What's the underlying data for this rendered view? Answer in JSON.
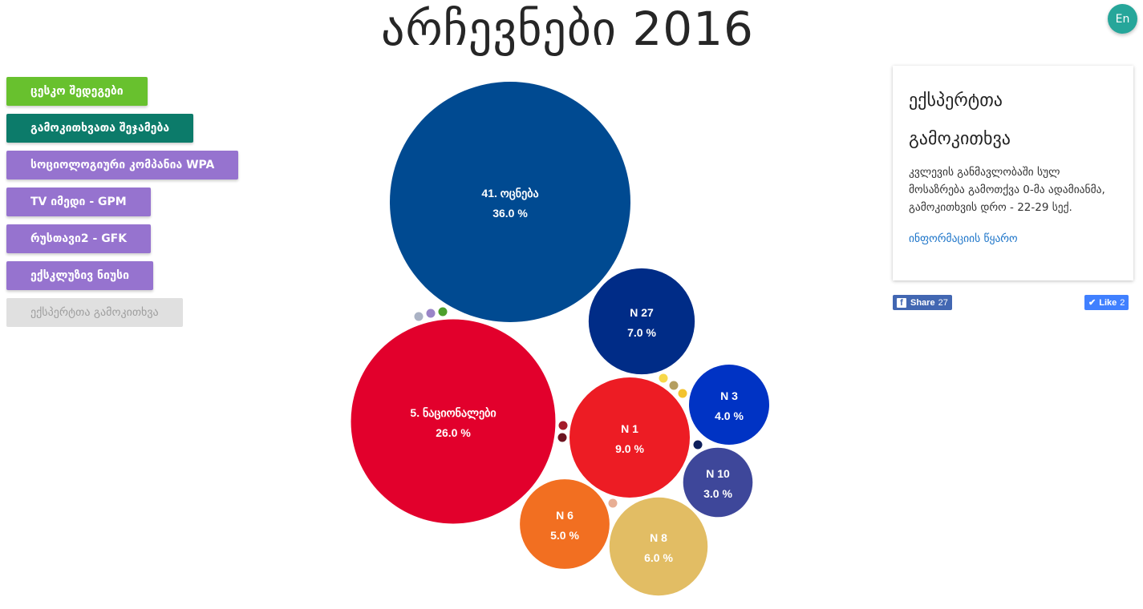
{
  "header": {
    "title": "არჩევნები 2016",
    "lang_button": "En"
  },
  "sidebar": {
    "items": [
      {
        "label": "ცესკო შედეგები",
        "color": "#68c12e"
      },
      {
        "label": "გამოკითხვათა შეჯამება",
        "color": "#0c7b6a"
      },
      {
        "label": "სოციოლოგიური კომპანია WPA",
        "color": "#9673cf"
      },
      {
        "label": "TV იმედი - GPM",
        "color": "#9673cf"
      },
      {
        "label": "რუსთავი2 - GFK",
        "color": "#9673cf"
      },
      {
        "label": "ექსკლუზივ ნიუსი",
        "color": "#9673cf"
      },
      {
        "label": "ექსპერტთა გამოკითხვა",
        "color": "#e0e0e0",
        "text_color": "#9e9e9e",
        "active": true
      }
    ]
  },
  "info_card": {
    "title": "ექსპერტთა გამოკითხვა",
    "description": "კვლევის განმავლობაში სულ მოსაზრება გამოთქვა 0-მა ადამიანმა, გამოკითხვის დრო - 22-29 სექ.",
    "link_text": "ინფორმაციის წყარო"
  },
  "social": {
    "share_label": "Share",
    "share_count": "27",
    "like_label": "Like",
    "like_count": "2"
  },
  "chart_data": {
    "type": "bubble",
    "unit": "%",
    "series": [
      {
        "name": "41. ოცნება",
        "value": 36.0,
        "color": "#004a91"
      },
      {
        "name": "5. ნაციონალები",
        "value": 26.0,
        "color": "#e2002c"
      },
      {
        "name": "N 1",
        "value": 9.0,
        "color": "#ed1c24"
      },
      {
        "name": "N 27",
        "value": 7.0,
        "color": "#002c87"
      },
      {
        "name": "N 8",
        "value": 6.0,
        "color": "#e2bd64"
      },
      {
        "name": "N 6",
        "value": 5.0,
        "color": "#f26f21"
      },
      {
        "name": "N 3",
        "value": 4.0,
        "color": "#0033c4"
      },
      {
        "name": "N 10",
        "value": 3.0,
        "color": "#3e479a"
      }
    ],
    "small_parties": [
      {
        "color": "#aab2c4"
      },
      {
        "color": "#9a85c8"
      },
      {
        "color": "#4c9f2c"
      },
      {
        "color": "#a41c2a"
      },
      {
        "color": "#6c1420"
      },
      {
        "color": "#f7d84a"
      },
      {
        "color": "#b49e60"
      },
      {
        "color": "#f3c32e"
      },
      {
        "color": "#0e1f5c"
      },
      {
        "color": "#e8ae94"
      }
    ]
  }
}
